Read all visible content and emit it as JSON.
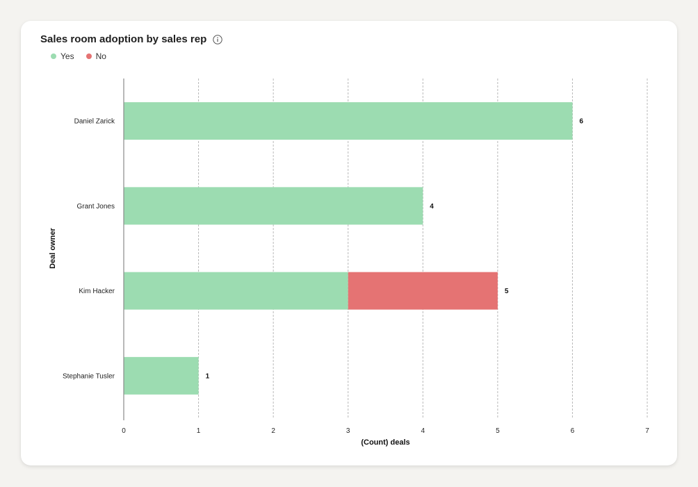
{
  "chart_data": {
    "type": "bar",
    "orientation": "horizontal",
    "stacked": true,
    "title": "Sales room adoption by sales rep",
    "xlabel": "(Count) deals",
    "ylabel": "Deal owner",
    "xlim": [
      0,
      7
    ],
    "xticks": [
      0,
      1,
      2,
      3,
      4,
      5,
      6,
      7
    ],
    "grid": true,
    "legend_position": "top-left",
    "categories": [
      "Daniel Zarick",
      "Grant Jones",
      "Kim Hacker",
      "Stephanie Tusler"
    ],
    "series": [
      {
        "name": "Yes",
        "color": "#9cdcb1",
        "values": [
          6,
          4,
          3,
          1
        ]
      },
      {
        "name": "No",
        "color": "#e57373",
        "values": [
          0,
          0,
          2,
          0
        ]
      }
    ],
    "totals": [
      6,
      4,
      5,
      1
    ]
  },
  "icons": {
    "info": "info-icon"
  }
}
